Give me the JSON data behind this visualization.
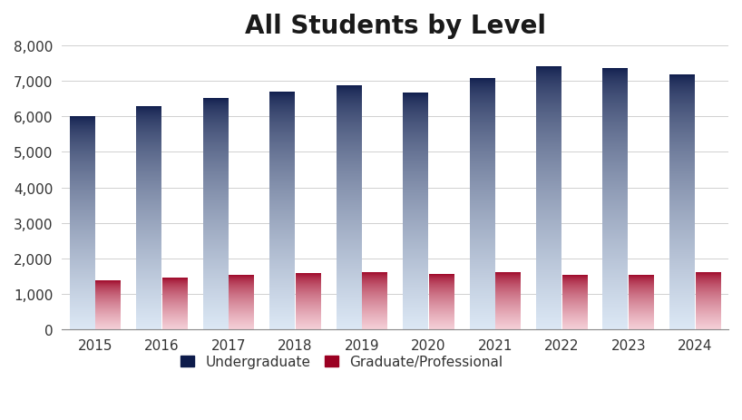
{
  "title": "All Students by Level",
  "years": [
    2015,
    2016,
    2017,
    2018,
    2019,
    2020,
    2021,
    2022,
    2023,
    2024
  ],
  "undergraduate": [
    5980,
    6270,
    6500,
    6680,
    6850,
    6650,
    7060,
    7380,
    7330,
    7150
  ],
  "grad_prof": [
    1360,
    1430,
    1510,
    1580,
    1600,
    1550,
    1600,
    1530,
    1510,
    1600
  ],
  "ylim": [
    0,
    8000
  ],
  "yticks": [
    0,
    1000,
    2000,
    3000,
    4000,
    5000,
    6000,
    7000,
    8000
  ],
  "bar_width": 0.38,
  "bar_gap": 0.01,
  "undergrad_top_color": "#0d1b4b",
  "undergrad_bottom_color": "#dce8f5",
  "grad_top_color": "#9b0022",
  "grad_bottom_color": "#f5d0d8",
  "background_color": "#ffffff",
  "title_fontsize": 20,
  "title_fontweight": "bold",
  "tick_fontsize": 11,
  "legend_fontsize": 11,
  "legend_label_undergrad": "Undergraduate",
  "legend_label_grad": "Graduate/Professional",
  "grid_color": "#d0d0d0",
  "title_color": "#1a1a1a"
}
